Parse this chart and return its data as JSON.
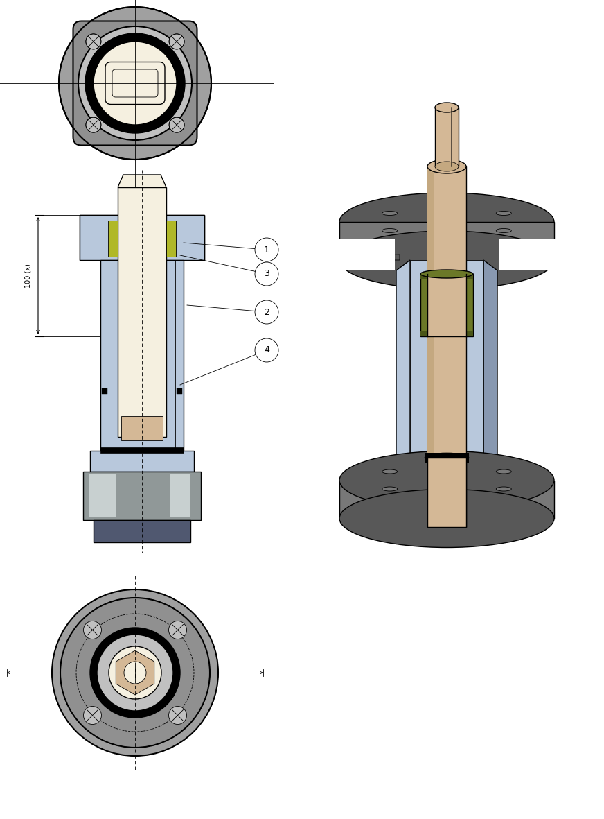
{
  "bg_color": "#ffffff",
  "fig_width": 8.72,
  "fig_height": 11.81,
  "dpi": 100,
  "colors": {
    "gray_outer": "#a0a0a0",
    "gray_mid": "#909090",
    "gray_dark": "#606060",
    "gray_inner": "#c0c0c0",
    "gray_lighter": "#d8d8d8",
    "black": "#000000",
    "white": "#ffffff",
    "cream": "#f5f0e0",
    "tan": "#d4b896",
    "tan_dark": "#c4a880",
    "olive": "#6b7828",
    "olive_dark": "#4a5618",
    "blue_light": "#b8c8dc",
    "blue_mid": "#8898b0",
    "blue_dark": "#505870",
    "chrome": "#909898",
    "chrome_light": "#c8d0d0",
    "chrome_dark": "#606868",
    "steel_dark": "#484858",
    "yellow_green": "#b0b828",
    "gray_3d_dark": "#585858",
    "gray_3d_mid": "#787878",
    "gray_3d_light": "#b0bcc8"
  },
  "dimension_label": "100 (x)"
}
